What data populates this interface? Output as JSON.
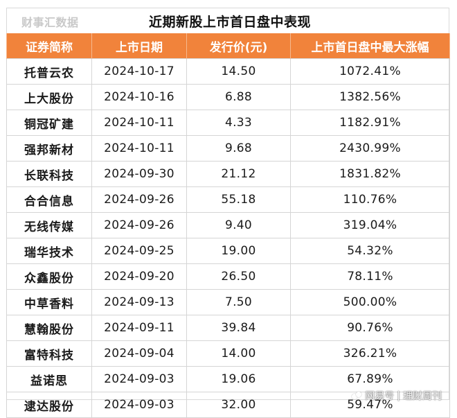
{
  "header": {
    "source": "财事汇数据",
    "title": "近期新股上市首日盘中表现"
  },
  "table": {
    "columns": [
      "证券简称",
      "上市日期",
      "发行价(元)",
      "上市首日盘中最大涨幅"
    ],
    "rows": [
      [
        "托普云农",
        "2024-10-17",
        "14.50",
        "1072.41%"
      ],
      [
        "上大股份",
        "2024-10-16",
        "6.88",
        "1382.56%"
      ],
      [
        "铜冠矿建",
        "2024-10-11",
        "4.33",
        "1182.91%"
      ],
      [
        "强邦新材",
        "2024-10-11",
        "9.68",
        "2430.99%"
      ],
      [
        "长联科技",
        "2024-09-30",
        "21.12",
        "1831.82%"
      ],
      [
        "合合信息",
        "2024-09-26",
        "55.18",
        "110.76%"
      ],
      [
        "无线传媒",
        "2024-09-26",
        "9.40",
        "319.04%"
      ],
      [
        "瑞华技术",
        "2024-09-25",
        "19.00",
        "54.32%"
      ],
      [
        "众鑫股份",
        "2024-09-20",
        "26.50",
        "78.11%"
      ],
      [
        "中草香料",
        "2024-09-13",
        "7.50",
        "500.00%"
      ],
      [
        "慧翰股份",
        "2024-09-11",
        "39.84",
        "90.76%"
      ],
      [
        "富特科技",
        "2024-09-04",
        "14.00",
        "326.21%"
      ],
      [
        "益诺思",
        "2024-09-03",
        "19.06",
        "67.89%"
      ],
      [
        "逮达股份",
        "2024-09-03",
        "32.00",
        "59.47%"
      ]
    ]
  },
  "watermark": {
    "brand": "网易号",
    "separator": "|",
    "account": "理财周刊"
  },
  "colors": {
    "header_bg": "#f1833b",
    "header_text": "#ffffff",
    "source_text": "#c9c9c9",
    "grid_line": "#d5d5d5"
  }
}
